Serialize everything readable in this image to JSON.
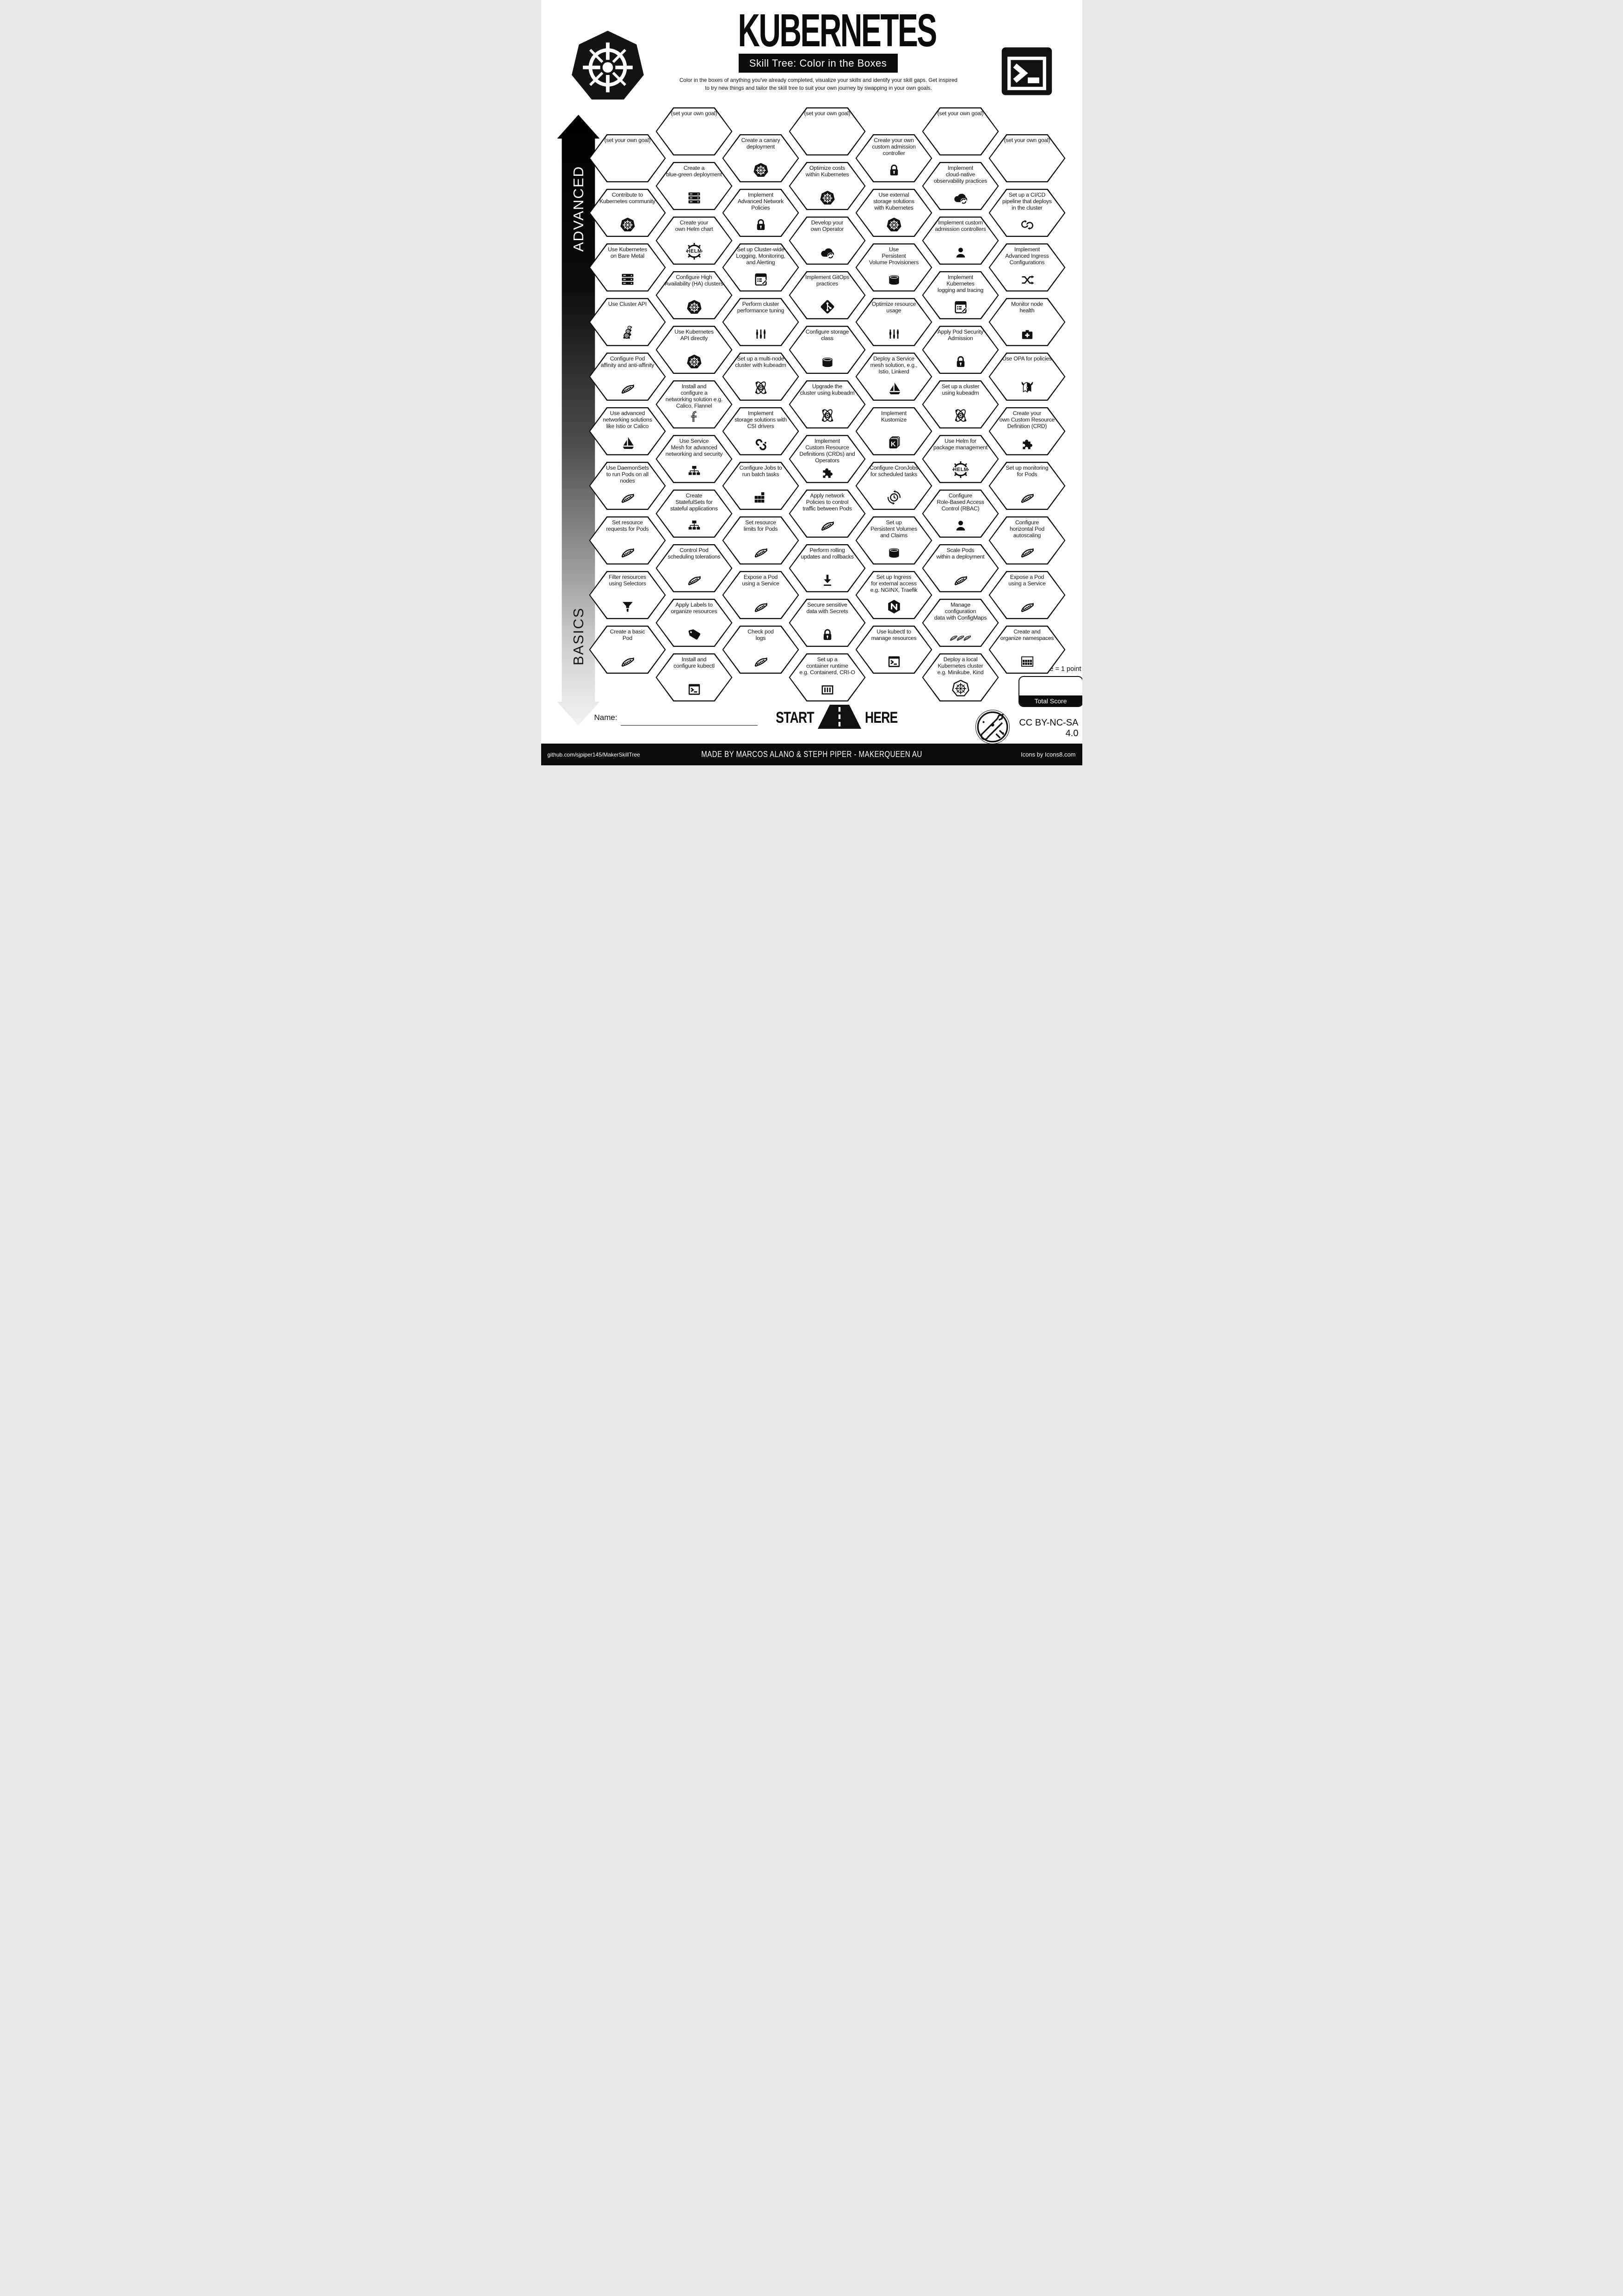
{
  "header": {
    "title": "KUBERNETES",
    "subtitle": "Skill Tree: Color in the Boxes",
    "description": "Color in the boxes of anything you've already completed, visualize your skills and identify your skill gaps.  Get inspired\nto try new things and tailor the skill tree to suit your own journey by swapping in your own goals.",
    "logo_icon": "kubernetes",
    "terminal_icon": "terminal"
  },
  "axis": {
    "advanced": "ADVANCED",
    "basics": "BASICS"
  },
  "accent_colors": {
    "ink": "#0b0b0b",
    "paper": "#ffffff"
  },
  "grid": {
    "columns": [
      {
        "tiles": [
          {
            "label": "(set your own goal)",
            "icon": null,
            "goal": true
          },
          {
            "label": "Contribute to\nKubernetes community",
            "icon": "kubernetes"
          },
          {
            "label": "Use Kubernetes\non Bare Metal",
            "icon": "server-rack"
          },
          {
            "label": "Use Cluster API",
            "icon": "cluster-api"
          },
          {
            "label": "Configure Pod\naffinity and anti-affinity",
            "icon": "pea-pod"
          },
          {
            "label": "Use advanced\nnetworking solutions\nlike Istio or Calico",
            "icon": "sailboat"
          },
          {
            "label": "Use DaemonSets\nto run Pods on all\nnodes",
            "icon": "pea-pod"
          },
          {
            "label": "Set resource\nrequests for Pods",
            "icon": "pea-pod"
          },
          {
            "label": "Filter resources\nusing Selectors",
            "icon": "funnel"
          },
          {
            "label": "Create a basic\nPod",
            "icon": "pea-pod"
          }
        ]
      },
      {
        "tiles": [
          {
            "label": "(set your own goal)",
            "icon": null,
            "goal": true
          },
          {
            "label": "Create a\nblue-green deployment",
            "icon": "server-rack"
          },
          {
            "label": "Create your\nown Helm chart",
            "icon": "helm"
          },
          {
            "label": "Configure High\nAvailability (HA) clusters",
            "icon": "kubernetes"
          },
          {
            "label": "Use Kubernetes\nAPI directly",
            "icon": "kubernetes"
          },
          {
            "label": "Install and\nconfigure a\nnetworking solution e.g.\nCalico, Flannel",
            "icon": "flannel"
          },
          {
            "label": "Use Service\nMesh for advanced\nnetworking and security",
            "icon": "network-tree"
          },
          {
            "label": "Create\nStatefulSets for\nstateful applications",
            "icon": "network-tree"
          },
          {
            "label": "Control Pod\nscheduling tolerations",
            "icon": "pea-pod"
          },
          {
            "label": "Apply Labels to\norganize resources",
            "icon": "tag"
          },
          {
            "label": "Install and\nconfigure kubectl",
            "icon": "terminal"
          }
        ]
      },
      {
        "tiles": [
          {
            "label": "Create a canary\ndeployment",
            "icon": "kubernetes"
          },
          {
            "label": "Implement\nAdvanced Network\nPolicies",
            "icon": "lock"
          },
          {
            "label": "Set up Cluster-wide\nLogging, Monitoring,\nand Alerting",
            "icon": "log-doc"
          },
          {
            "label": "Perform cluster\nperformance tuning",
            "icon": "sliders"
          },
          {
            "label": "Set up a multi-node\ncluster with kubeadm",
            "icon": "atom"
          },
          {
            "label": "Implement\nstorage solutions with\nCSI drivers",
            "icon": "csi"
          },
          {
            "label": "Configure Jobs to\nrun batch tasks",
            "icon": "blocks"
          },
          {
            "label": "Set resource\nlimits for Pods",
            "icon": "pea-pod"
          },
          {
            "label": "Expose a Pod\nusing a Service",
            "icon": "pea-pod"
          },
          {
            "label": "Check pod\nlogs",
            "icon": "pea-pod"
          }
        ]
      },
      {
        "tiles": [
          {
            "label": "(set your own goal)",
            "icon": null,
            "goal": true
          },
          {
            "label": "Optimize costs\nwithin Kubernetes",
            "icon": "kubernetes"
          },
          {
            "label": "Develop your\nown Operator",
            "icon": "cloud-sync"
          },
          {
            "label": "Implement GitOps\npractices",
            "icon": "git"
          },
          {
            "label": "Configure storage\nclass",
            "icon": "cylinder"
          },
          {
            "label": "Upgrade the\ncluster using kubeadm",
            "icon": "atom"
          },
          {
            "label": "Implement\nCustom Resource\nDefinitions (CRDs) and\nOperators",
            "icon": "puzzle"
          },
          {
            "label": "Apply network\nPolicies to control\ntraffic between Pods",
            "icon": "pea-pod"
          },
          {
            "label": "Perform rolling\nupdates and rollbacks",
            "icon": "down-arrow"
          },
          {
            "label": "Secure sensitive\ndata with Secrets",
            "icon": "lock"
          },
          {
            "label": "Set up a\ncontainer runtime\ne.g. Containerd, CRI-O",
            "icon": "container"
          }
        ]
      },
      {
        "tiles": [
          {
            "label": "Create your own\ncustom admission\ncontroller",
            "icon": "lock"
          },
          {
            "label": "Use external\nstorage solutions\nwith Kubernetes",
            "icon": "kubernetes"
          },
          {
            "label": "Use\nPersistent\nVolume Provisioners",
            "icon": "cylinder"
          },
          {
            "label": "Optimize resource\nusage",
            "icon": "sliders"
          },
          {
            "label": "Deploy a Service\nmesh solution, e.g.,\nIstio, Linkerd",
            "icon": "sailboat"
          },
          {
            "label": "Implement\nKustomize",
            "icon": "kustomize"
          },
          {
            "label": "Configure CronJobs\nfor scheduled tasks",
            "icon": "cron"
          },
          {
            "label": "Set up\nPersistent Volumes\nand Claims",
            "icon": "cylinder"
          },
          {
            "label": "Set up Ingress\nfor external access\ne.g. NGINX, Traefik",
            "icon": "nginx"
          },
          {
            "label": "Use kubectl to\nmanage resources",
            "icon": "terminal"
          }
        ]
      },
      {
        "tiles": [
          {
            "label": "(set your own goal)",
            "icon": null,
            "goal": true
          },
          {
            "label": "Implement\ncloud-native\nobservability practices",
            "icon": "cloud-sync"
          },
          {
            "label": "Implement custom\nadmission controllers",
            "icon": "person"
          },
          {
            "label": "Implement\nKubernetes\nlogging and tracing",
            "icon": "log-doc"
          },
          {
            "label": "Apply Pod Security\nAdmission",
            "icon": "lock"
          },
          {
            "label": "Set up a cluster\nusing kubeadm",
            "icon": "atom"
          },
          {
            "label": "Use Helm for\npackage management",
            "icon": "helm"
          },
          {
            "label": "Configure\nRole-Based Access\nControl (RBAC)",
            "icon": "person"
          },
          {
            "label": "Scale Pods\nwithin a deployment",
            "icon": "pea-pod"
          },
          {
            "label": "Manage\nconfiguration\ndata with ConfigMaps",
            "icon": "peas-three"
          },
          {
            "label": "Deploy a local\nKubernetes cluster\ne.g. Minikube, Kind",
            "icon": "kubernetes-outline"
          }
        ]
      },
      {
        "tiles": [
          {
            "label": "(set your own goal)",
            "icon": null,
            "goal": true
          },
          {
            "label": "Set up a CI/CD\npipeline that deploys\nin the cluster",
            "icon": "ci-cd"
          },
          {
            "label": "Implement\nAdvanced Ingress\nConfigurations",
            "icon": "shuffle"
          },
          {
            "label": "Monitor node\nhealth",
            "icon": "first-aid"
          },
          {
            "label": "Use OPA for policies",
            "icon": "opa"
          },
          {
            "label": "Create your\nown Custom Resource\nDefinition (CRD)",
            "icon": "puzzle"
          },
          {
            "label": "Set up monitoring\nfor Pods",
            "icon": "pea-pod"
          },
          {
            "label": "Configure\nhorizontal Pod\nautoscaling",
            "icon": "pea-pod"
          },
          {
            "label": "Expose a Pod\nusing a Service",
            "icon": "pea-pod"
          },
          {
            "label": "Create and\norganize namespaces",
            "icon": "namespaces"
          }
        ]
      }
    ]
  },
  "start_here": {
    "start": "START",
    "here": "HERE",
    "road_icon": "road"
  },
  "name_field": {
    "label": "Name:",
    "value": ""
  },
  "scoring": {
    "tile_points": "1 tile = 1 point",
    "total_label": "Total Score"
  },
  "license": {
    "text": "CC BY-NC-SA 4.0",
    "badge_icon": "maker-badge"
  },
  "footer": {
    "left": "github.com/sjpiper145/MakerSkillTree",
    "center": "MADE BY MARCOS ALANO & STEPH PIPER  -  MAKERQUEEN AU",
    "right": "Icons by Icons8.com"
  }
}
